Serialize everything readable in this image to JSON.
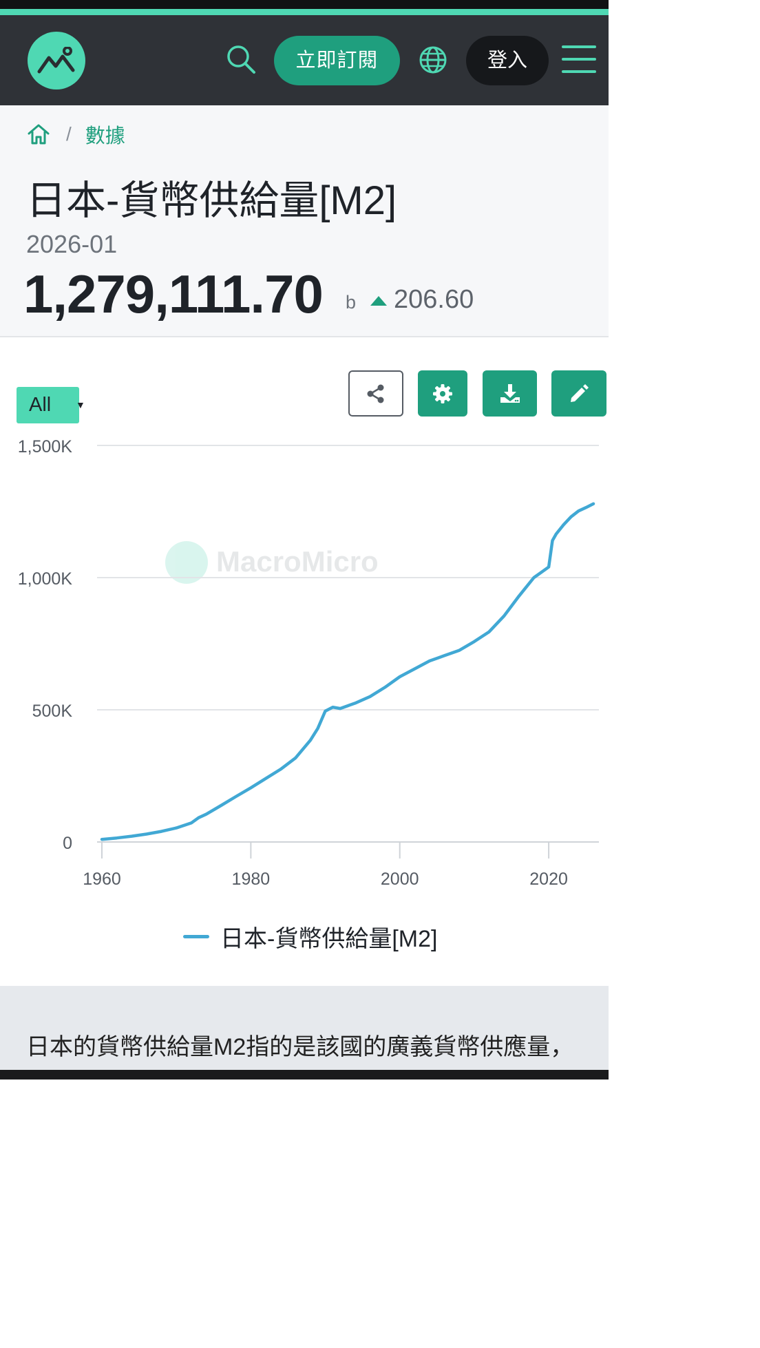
{
  "nav": {
    "subscribe_label": "立即訂閱",
    "login_label": "登入"
  },
  "breadcrumb": {
    "link_label": "數據"
  },
  "header": {
    "title": "日本-貨幣供給量[M2]",
    "date": "2026-01",
    "value": "1,279,111.70",
    "unit": "b",
    "change": "206.60"
  },
  "toolbar": {
    "range_label": "All"
  },
  "colors": {
    "brand": "#4fd8b3",
    "brand_dark": "#1f9f7e",
    "series_line": "#41a8d4"
  },
  "chart_data": {
    "type": "line",
    "title": "",
    "xlabel": "",
    "ylabel": "",
    "xlim": [
      1960,
      2026
    ],
    "ylim": [
      0,
      1500000
    ],
    "y_ticks": [
      0,
      500000,
      1000000,
      1500000
    ],
    "y_tick_labels": [
      "0",
      "500K",
      "1,000K",
      "1,500K"
    ],
    "x_ticks": [
      1960,
      1980,
      2000,
      2020
    ],
    "x_tick_labels": [
      "1960",
      "1980",
      "2000",
      "2020"
    ],
    "grid": true,
    "legend_position": "bottom",
    "watermark": "MacroMicro",
    "series": [
      {
        "name": "日本-貨幣供給量[M2]",
        "x": [
          1960,
          1962,
          1964,
          1966,
          1968,
          1970,
          1972,
          1973,
          1974,
          1976,
          1978,
          1980,
          1982,
          1984,
          1986,
          1988,
          1989,
          1990,
          1991,
          1992,
          1993,
          1994,
          1996,
          1998,
          2000,
          2002,
          2004,
          2006,
          2008,
          2010,
          2012,
          2014,
          2016,
          2018,
          2019,
          2020,
          2020.5,
          2021,
          2022,
          2023,
          2024,
          2025,
          2026
        ],
        "y": [
          10000,
          15000,
          22000,
          30000,
          40000,
          53000,
          72000,
          92000,
          105000,
          138000,
          172000,
          205000,
          240000,
          275000,
          318000,
          385000,
          430000,
          495000,
          510000,
          505000,
          515000,
          525000,
          550000,
          585000,
          625000,
          655000,
          685000,
          705000,
          725000,
          758000,
          795000,
          855000,
          930000,
          1000000,
          1020000,
          1040000,
          1140000,
          1165000,
          1200000,
          1230000,
          1252000,
          1265000,
          1279111.7
        ]
      }
    ]
  },
  "description": {
    "text": "日本的貨幣供給量M2指的是該國的廣義貨幣供應量，"
  }
}
